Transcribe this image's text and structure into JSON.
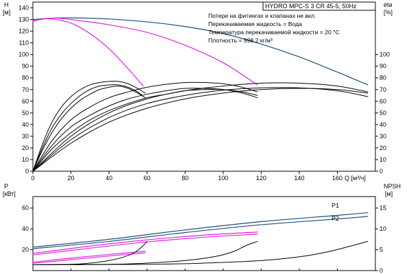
{
  "chart_data": [
    {
      "type": "line",
      "title": "HYDRO MPC-S 3 CR 45-5, 50Hz",
      "notes": [
        "Потери на фитингах и клапанах не вкл.",
        "Перекачиваемая жидкость = Вода",
        "Температура перекачиваемой жидкости = 20 °C",
        "Плотность = 998.2 кг/м³"
      ],
      "xlabel": "Q [м³/ч]",
      "x_ticks": [
        0,
        20,
        40,
        60,
        80,
        100,
        120,
        140,
        160
      ],
      "xlim": [
        0,
        180
      ],
      "ylabel_left": [
        "H",
        "[м]"
      ],
      "y_left_ticks": [
        0,
        10,
        20,
        30,
        40,
        50,
        60,
        70,
        80,
        90,
        100,
        110,
        120,
        130,
        140
      ],
      "ylim_left": [
        0,
        145
      ],
      "ylabel_right": [
        "eta",
        "[%]"
      ],
      "y_right_ticks": [
        0,
        10,
        20,
        30,
        40,
        50,
        60,
        70,
        80,
        90,
        100
      ],
      "ylim_right": [
        0,
        145
      ],
      "grid": false,
      "colors": {
        "head_max": "#1f4e79",
        "head_reduced": "#e020e0",
        "efficiency": "#000000"
      },
      "series": [
        {
          "kind": "head_max",
          "axis": "left",
          "x": [
            0,
            10,
            20,
            40,
            60,
            80,
            100,
            120,
            140,
            160,
            176
          ],
          "y": [
            130,
            131.2,
            131.5,
            130.5,
            128,
            124,
            118,
            109,
            98,
            85,
            74
          ]
        },
        {
          "kind": "head_reduced",
          "axis": "left",
          "x": [
            0,
            8,
            15,
            25,
            40,
            60,
            80,
            100,
            118
          ],
          "y": [
            129,
            131,
            131,
            129,
            125.5,
            119,
            108,
            93,
            74
          ]
        },
        {
          "kind": "head_reduced",
          "axis": "left",
          "x": [
            0,
            5,
            10,
            20,
            30,
            40,
            50,
            58
          ],
          "y": [
            128.5,
            130.5,
            130.5,
            127,
            118,
            105,
            88,
            73
          ]
        },
        {
          "kind": "efficiency",
          "axis": "right",
          "x": [
            0,
            5,
            10,
            15,
            20,
            25,
            30,
            35,
            40,
            45,
            50,
            55,
            58
          ],
          "y": [
            0,
            20,
            37,
            49,
            58,
            65,
            70,
            73,
            74,
            74,
            72,
            68,
            64
          ]
        },
        {
          "kind": "efficiency",
          "axis": "right",
          "x": [
            0,
            5,
            10,
            15,
            20,
            25,
            30,
            35,
            40,
            45,
            50,
            55,
            59
          ],
          "y": [
            0,
            23,
            42,
            55,
            64,
            70,
            74,
            76,
            77,
            77,
            75,
            71,
            67
          ]
        },
        {
          "kind": "efficiency",
          "axis": "right",
          "x": [
            0,
            5,
            10,
            15,
            20,
            25,
            30,
            35,
            40,
            45,
            50,
            55,
            59
          ],
          "y": [
            0,
            18,
            33,
            45,
            54,
            61,
            66,
            70,
            72,
            73,
            71,
            67,
            63
          ]
        },
        {
          "kind": "efficiency",
          "axis": "right",
          "x": [
            0,
            10,
            20,
            30,
            40,
            50,
            60,
            70,
            80,
            90,
            100,
            110,
            118
          ],
          "y": [
            0,
            22,
            38,
            48,
            56,
            62,
            66,
            69,
            71,
            71,
            70,
            67,
            63
          ]
        },
        {
          "kind": "efficiency",
          "axis": "right",
          "x": [
            0,
            10,
            20,
            30,
            40,
            50,
            60,
            70,
            80,
            90,
            100,
            110,
            118
          ],
          "y": [
            0,
            26,
            44,
            55,
            63,
            68,
            72,
            74.5,
            76,
            76,
            75,
            72,
            68
          ]
        },
        {
          "kind": "efficiency",
          "axis": "right",
          "x": [
            0,
            10,
            20,
            30,
            40,
            50,
            60,
            70,
            80,
            90,
            100,
            110,
            118
          ],
          "y": [
            0,
            19,
            33,
            44,
            52,
            58,
            63,
            66,
            69,
            70,
            70,
            68,
            65
          ]
        },
        {
          "kind": "efficiency",
          "axis": "right",
          "x": [
            0,
            20,
            40,
            60,
            80,
            100,
            120,
            140,
            160,
            176
          ],
          "y": [
            0,
            27,
            46,
            58,
            65,
            69.5,
            71.5,
            71.5,
            69,
            64
          ]
        },
        {
          "kind": "efficiency",
          "axis": "right",
          "x": [
            0,
            20,
            40,
            60,
            80,
            100,
            120,
            140,
            160,
            176
          ],
          "y": [
            0,
            30,
            50,
            62,
            69,
            73,
            75.5,
            75.5,
            73,
            68
          ]
        },
        {
          "kind": "efficiency",
          "axis": "right",
          "x": [
            0,
            20,
            40,
            60,
            80,
            100,
            120,
            140,
            160,
            176
          ],
          "y": [
            0,
            24,
            42,
            54,
            62,
            67,
            70,
            71,
            70,
            67
          ]
        }
      ]
    },
    {
      "type": "line",
      "xlim": [
        0,
        180
      ],
      "ylabel_left": [
        "P",
        "[кВт]"
      ],
      "y_left_ticks": [
        20,
        40,
        60
      ],
      "ylim_left": [
        0,
        71
      ],
      "ylabel_right": [
        "NPSH",
        "[м]"
      ],
      "y_right_ticks": [
        0,
        5,
        10,
        15
      ],
      "ylim_right": [
        0,
        17.75
      ],
      "grid": false,
      "colors": {
        "power_max": "#1f4e79",
        "power_reduced": "#e020e0",
        "npsh": "#000000"
      },
      "legend": [
        "P1",
        "P2"
      ],
      "series": [
        {
          "name": "P1",
          "kind": "power_max",
          "axis": "left",
          "x": [
            0,
            40,
            80,
            120,
            160,
            176
          ],
          "y": [
            22.5,
            30,
            39,
            47,
            53,
            55.5
          ]
        },
        {
          "name": "P2",
          "kind": "power_max",
          "axis": "left",
          "x": [
            0,
            40,
            80,
            120,
            160,
            176
          ],
          "y": [
            21,
            28,
            36.5,
            44,
            49.5,
            52
          ]
        },
        {
          "kind": "power_reduced",
          "axis": "left",
          "x": [
            0,
            30,
            60,
            90,
            118
          ],
          "y": [
            16.5,
            23.5,
            29.5,
            34,
            37
          ]
        },
        {
          "kind": "power_reduced",
          "axis": "left",
          "x": [
            0,
            30,
            60,
            90,
            118
          ],
          "y": [
            15,
            21.5,
            27.5,
            32,
            35
          ]
        },
        {
          "kind": "power_reduced",
          "axis": "left",
          "x": [
            0,
            20,
            40,
            59
          ],
          "y": [
            8,
            12,
            15.5,
            18.5
          ]
        },
        {
          "kind": "power_reduced",
          "axis": "left",
          "x": [
            0,
            20,
            40,
            59
          ],
          "y": [
            7,
            10.5,
            14,
            17
          ]
        },
        {
          "kind": "npsh",
          "axis": "right",
          "x": [
            0,
            20,
            30,
            40,
            48,
            54,
            58,
            60
          ],
          "y": [
            1.4,
            1.5,
            1.8,
            2.4,
            3.3,
            4.5,
            6,
            7
          ]
        },
        {
          "kind": "npsh",
          "axis": "right",
          "x": [
            0,
            40,
            60,
            80,
            95,
            105,
            112,
            118
          ],
          "y": [
            1.4,
            1.5,
            1.8,
            2.4,
            3.3,
            4.5,
            6,
            7
          ]
        },
        {
          "kind": "npsh",
          "axis": "right",
          "x": [
            0,
            60,
            90,
            120,
            140,
            155,
            168,
            176
          ],
          "y": [
            1.4,
            1.5,
            1.8,
            2.4,
            3.3,
            4.5,
            6,
            7
          ]
        }
      ]
    }
  ]
}
